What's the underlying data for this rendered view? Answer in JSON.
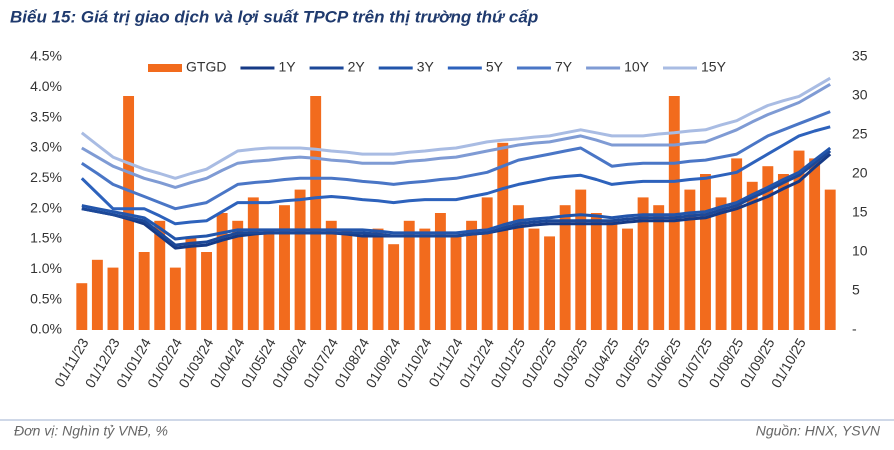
{
  "chart_data": {
    "type": "combo",
    "title": "Biểu 15: Giá trị giao dịch và lợi suất TPCP trên thị trường thứ cấp",
    "unit_note": "Đơn vị: Nghìn tỷ VNĐ, %",
    "source": "Nguồn: HNX, YSVN",
    "categories": [
      "01/11/23",
      null,
      "01/12/23",
      null,
      "01/01/24",
      null,
      "01/02/24",
      null,
      "01/03/24",
      null,
      "01/04/24",
      null,
      "01/05/24",
      null,
      "01/06/24",
      null,
      "01/07/24",
      null,
      "01/08/24",
      null,
      "01/09/24",
      null,
      "01/10/24",
      null,
      "01/11/24",
      null,
      "01/12/24",
      null,
      "01/01/25",
      null,
      "01/02/25",
      null,
      "01/03/25",
      null,
      "01/04/25",
      null,
      "01/05/25",
      null,
      "01/06/25",
      null,
      "01/07/25",
      null,
      "01/08/25",
      null,
      "01/09/25",
      null,
      "01/10/25",
      null,
      null
    ],
    "series": [
      {
        "name": "GTGD",
        "kind": "bar",
        "axis": "y2",
        "color": "#f26b1d",
        "values": [
          6,
          9,
          8,
          30,
          10,
          14,
          8,
          12,
          10,
          15,
          14,
          17,
          13,
          16,
          18,
          30,
          14,
          13,
          12,
          13,
          11,
          14,
          13,
          15,
          12,
          14,
          17,
          24,
          16,
          13,
          12,
          16,
          18,
          15,
          14,
          13,
          17,
          16,
          30,
          18,
          20,
          17,
          22,
          19,
          21,
          20,
          23,
          22,
          18
        ]
      },
      {
        "name": "1Y",
        "kind": "line",
        "color": "#163a86",
        "values": [
          2.0,
          1.95,
          1.9,
          1.83,
          1.75,
          1.55,
          1.35,
          1.38,
          1.4,
          1.48,
          1.55,
          1.58,
          1.6,
          1.6,
          1.6,
          1.6,
          1.6,
          1.58,
          1.55,
          1.55,
          1.55,
          1.55,
          1.55,
          1.55,
          1.55,
          1.58,
          1.6,
          1.65,
          1.7,
          1.73,
          1.75,
          1.75,
          1.75,
          1.75,
          1.75,
          1.78,
          1.8,
          1.8,
          1.8,
          1.83,
          1.85,
          1.93,
          2.0,
          2.1,
          2.2,
          2.33,
          2.45,
          2.68,
          2.9
        ]
      },
      {
        "name": "2Y",
        "kind": "line",
        "color": "#1c4898",
        "values": [
          2.0,
          1.95,
          1.9,
          1.85,
          1.8,
          1.6,
          1.4,
          1.43,
          1.45,
          1.53,
          1.6,
          1.6,
          1.6,
          1.6,
          1.6,
          1.6,
          1.6,
          1.6,
          1.6,
          1.58,
          1.55,
          1.55,
          1.55,
          1.55,
          1.55,
          1.58,
          1.6,
          1.68,
          1.75,
          1.78,
          1.8,
          1.8,
          1.8,
          1.8,
          1.8,
          1.83,
          1.85,
          1.85,
          1.85,
          1.88,
          1.9,
          1.98,
          2.05,
          2.18,
          2.3,
          2.43,
          2.55,
          2.75,
          2.95
        ]
      },
      {
        "name": "3Y",
        "kind": "line",
        "color": "#2255ab",
        "values": [
          2.05,
          2.0,
          1.95,
          1.9,
          1.85,
          1.68,
          1.5,
          1.53,
          1.55,
          1.6,
          1.65,
          1.65,
          1.65,
          1.65,
          1.65,
          1.65,
          1.65,
          1.65,
          1.65,
          1.63,
          1.6,
          1.6,
          1.6,
          1.6,
          1.6,
          1.63,
          1.65,
          1.73,
          1.8,
          1.83,
          1.85,
          1.88,
          1.9,
          1.88,
          1.85,
          1.88,
          1.9,
          1.9,
          1.9,
          1.93,
          1.95,
          2.03,
          2.1,
          2.23,
          2.35,
          2.48,
          2.6,
          2.8,
          3.0
        ]
      },
      {
        "name": "5Y",
        "kind": "line",
        "color": "#2d62bc",
        "values": [
          2.5,
          2.25,
          2.0,
          2.0,
          2.0,
          1.88,
          1.75,
          1.78,
          1.8,
          1.95,
          2.1,
          2.1,
          2.1,
          2.13,
          2.15,
          2.18,
          2.2,
          2.18,
          2.15,
          2.13,
          2.1,
          2.13,
          2.15,
          2.15,
          2.15,
          2.2,
          2.25,
          2.33,
          2.4,
          2.45,
          2.5,
          2.53,
          2.55,
          2.48,
          2.4,
          2.43,
          2.45,
          2.45,
          2.45,
          2.48,
          2.5,
          2.55,
          2.6,
          2.75,
          2.9,
          3.05,
          3.2,
          3.28,
          3.35
        ]
      },
      {
        "name": "7Y",
        "kind": "line",
        "color": "#4a76c6",
        "values": [
          2.75,
          2.58,
          2.4,
          2.3,
          2.2,
          2.1,
          2.0,
          2.05,
          2.1,
          2.25,
          2.4,
          2.43,
          2.45,
          2.48,
          2.5,
          2.5,
          2.5,
          2.48,
          2.45,
          2.43,
          2.4,
          2.43,
          2.45,
          2.48,
          2.5,
          2.55,
          2.6,
          2.7,
          2.8,
          2.85,
          2.9,
          2.95,
          3.0,
          2.85,
          2.7,
          2.73,
          2.75,
          2.75,
          2.75,
          2.78,
          2.8,
          2.85,
          2.9,
          3.05,
          3.2,
          3.3,
          3.4,
          3.5,
          3.6
        ]
      },
      {
        "name": "10Y",
        "kind": "line",
        "color": "#7f9bd4",
        "values": [
          3.0,
          2.85,
          2.7,
          2.6,
          2.5,
          2.43,
          2.35,
          2.43,
          2.5,
          2.63,
          2.75,
          2.78,
          2.8,
          2.83,
          2.85,
          2.83,
          2.8,
          2.78,
          2.75,
          2.75,
          2.75,
          2.78,
          2.8,
          2.83,
          2.85,
          2.9,
          2.95,
          3.0,
          3.05,
          3.08,
          3.1,
          3.15,
          3.2,
          3.13,
          3.05,
          3.05,
          3.05,
          3.05,
          3.05,
          3.08,
          3.1,
          3.2,
          3.3,
          3.43,
          3.55,
          3.65,
          3.75,
          3.9,
          4.05
        ]
      },
      {
        "name": "15Y",
        "kind": "line",
        "color": "#a9bce3",
        "values": [
          3.25,
          3.05,
          2.85,
          2.75,
          2.65,
          2.58,
          2.5,
          2.58,
          2.65,
          2.8,
          2.95,
          2.98,
          3.0,
          3.0,
          3.0,
          2.98,
          2.95,
          2.93,
          2.9,
          2.9,
          2.9,
          2.93,
          2.95,
          2.98,
          3.0,
          3.05,
          3.1,
          3.13,
          3.15,
          3.18,
          3.2,
          3.25,
          3.3,
          3.25,
          3.2,
          3.2,
          3.2,
          3.23,
          3.25,
          3.28,
          3.3,
          3.38,
          3.45,
          3.58,
          3.7,
          3.78,
          3.85,
          4.0,
          4.15
        ]
      }
    ],
    "ylim": [
      0,
      4.5
    ],
    "yticks": [
      {
        "value": 0,
        "label": "0.0%"
      },
      {
        "value": 0.5,
        "label": "0.5%"
      },
      {
        "value": 1,
        "label": "1.0%"
      },
      {
        "value": 1.5,
        "label": "1.5%"
      },
      {
        "value": 2,
        "label": "2.0%"
      },
      {
        "value": 2.5,
        "label": "2.5%"
      },
      {
        "value": 3,
        "label": "3.0%"
      },
      {
        "value": 3.5,
        "label": "3.5%"
      },
      {
        "value": 4,
        "label": "4.0%"
      },
      {
        "value": 4.5,
        "label": "4.5%"
      }
    ],
    "y2lim": [
      0,
      35
    ],
    "y2ticks": [
      {
        "value": 0,
        "label": "-"
      },
      5,
      10,
      15,
      20,
      25,
      30,
      35
    ],
    "legend": "top"
  }
}
